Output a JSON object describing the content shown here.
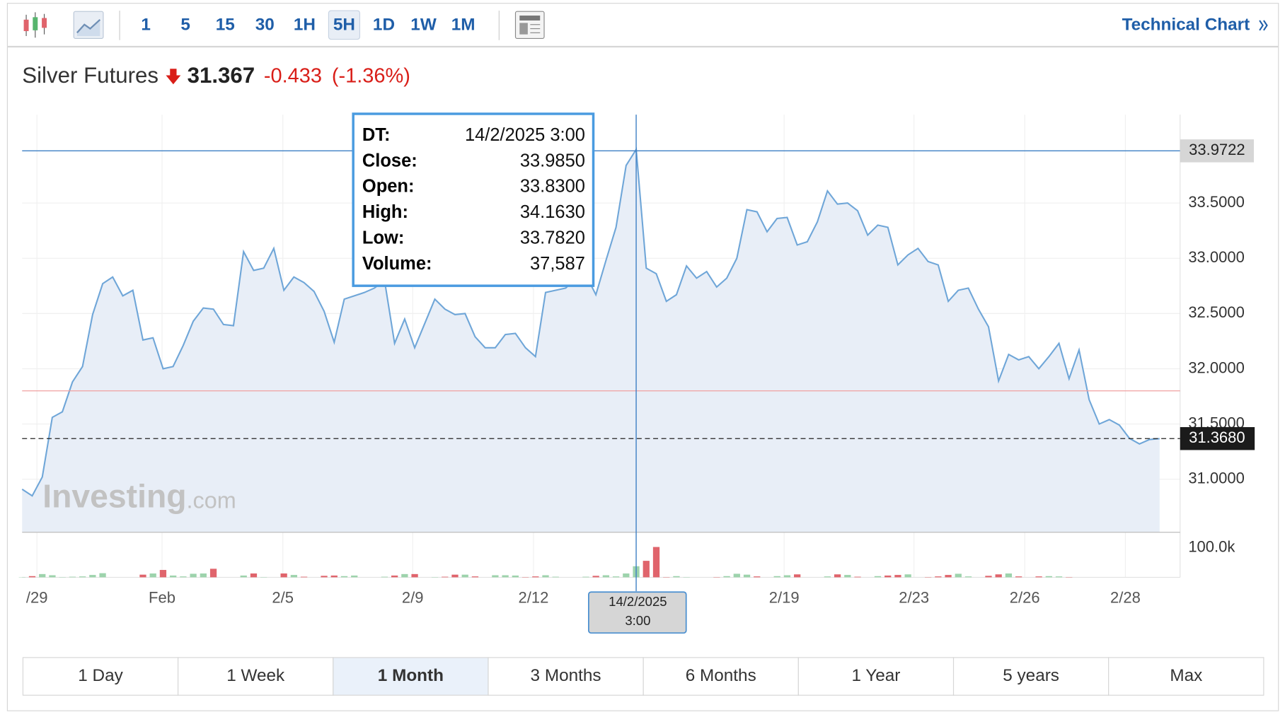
{
  "toolbar": {
    "intervals": [
      "1",
      "5",
      "15",
      "30",
      "1H",
      "5H",
      "1D",
      "1W",
      "1M"
    ],
    "active_interval": 5,
    "link": "Technical Chart"
  },
  "header": {
    "name": "Silver Futures",
    "price": "31.367",
    "change": "-0.433",
    "change_pct": "(-1.36%)"
  },
  "chart_data": {
    "type": "line",
    "color": "#6fa6d8",
    "fill": "#e8eef7",
    "values": [
      30.91,
      30.85,
      31.02,
      31.56,
      31.61,
      31.88,
      32.02,
      32.49,
      32.77,
      32.83,
      32.66,
      32.71,
      32.26,
      32.28,
      32.0,
      32.02,
      32.21,
      32.43,
      32.55,
      32.54,
      32.4,
      32.39,
      33.06,
      32.89,
      32.91,
      33.09,
      32.71,
      32.83,
      32.78,
      32.7,
      32.52,
      32.24,
      32.63,
      32.66,
      32.69,
      32.73,
      32.8,
      32.23,
      32.45,
      32.19,
      32.41,
      32.63,
      32.54,
      32.49,
      32.5,
      32.29,
      32.19,
      32.19,
      32.31,
      32.32,
      32.19,
      32.11,
      32.69,
      32.71,
      32.73,
      32.82,
      32.85,
      32.67,
      32.98,
      33.28,
      33.84,
      33.985,
      32.91,
      32.86,
      32.61,
      32.67,
      32.93,
      32.82,
      32.88,
      32.74,
      32.82,
      33.0,
      33.44,
      33.42,
      33.24,
      33.36,
      33.37,
      33.12,
      33.15,
      33.33,
      33.61,
      33.49,
      33.5,
      33.43,
      33.21,
      33.3,
      33.28,
      32.94,
      33.03,
      33.09,
      32.97,
      32.94,
      32.61,
      32.71,
      32.73,
      32.54,
      32.38,
      31.89,
      32.13,
      32.08,
      32.11,
      32.0,
      32.11,
      32.23,
      31.91,
      32.17,
      31.72,
      31.5,
      31.54,
      31.49,
      31.37,
      31.32,
      31.36,
      31.367
    ],
    "ylim": [
      30.52,
      34.3
    ],
    "yticks": [
      {
        "value": 31.0,
        "label": "31.0000"
      },
      {
        "value": 31.5,
        "label": "31.5000"
      },
      {
        "value": 32.0,
        "label": "32.0000"
      },
      {
        "value": 32.5,
        "label": "32.5000"
      },
      {
        "value": 33.0,
        "label": "33.0000"
      },
      {
        "value": 33.5,
        "label": "33.5000"
      }
    ],
    "xlim": [
      0,
      113
    ],
    "xticks": [
      {
        "value": 1.47,
        "label": "/29"
      },
      {
        "value": 13.9,
        "label": "Feb"
      },
      {
        "value": 25.9,
        "label": "2/5"
      },
      {
        "value": 38.8,
        "label": "2/9"
      },
      {
        "value": 50.8,
        "label": "2/12"
      },
      {
        "value": 75.7,
        "label": "2/19"
      },
      {
        "value": 88.6,
        "label": "2/23"
      },
      {
        "value": 99.6,
        "label": "2/26"
      },
      {
        "value": 109.6,
        "label": "2/28"
      }
    ],
    "grid": true,
    "reference_line": 31.8,
    "crosshair": {
      "index": 61,
      "price": {
        "value": 33.9722,
        "label": "33.9722"
      },
      "date": [
        "14/2/2025",
        "3:00"
      ]
    },
    "last_price": {
      "value": 31.368,
      "label": "31.3680"
    },
    "tooltip": [
      [
        "DT:",
        "14/2/2025 3:00"
      ],
      [
        "Close:",
        "33.9850"
      ],
      [
        "Open:",
        "33.8300"
      ],
      [
        "High:",
        "34.1630"
      ],
      [
        "Low:",
        "33.7820"
      ],
      [
        "Volume:",
        "37,587"
      ]
    ],
    "volume": {
      "up_color": "#9dd3ac",
      "down_color": "#e0646c",
      "ylim": [
        0,
        153000
      ],
      "yticks": [
        {
          "value": 100000,
          "label": "100.0k"
        }
      ],
      "values": [
        1000,
        4000,
        11000,
        7000,
        1000,
        2000,
        3000,
        8000,
        14000,
        0,
        0,
        0,
        9000,
        13000,
        25000,
        6000,
        3000,
        12000,
        13000,
        29000,
        0,
        0,
        6000,
        13000,
        1000,
        0,
        13000,
        8000,
        2000,
        0,
        5000,
        6000,
        4000,
        6000,
        0,
        0,
        2000,
        6000,
        11000,
        11000,
        0,
        1000,
        2000,
        9000,
        9000,
        3000,
        0,
        7000,
        7000,
        6000,
        1000,
        3000,
        7000,
        2000,
        0,
        0,
        2000,
        5000,
        7000,
        3000,
        13000,
        37587,
        56000,
        103000,
        1000,
        4000,
        1000,
        0,
        0,
        1000,
        4000,
        12000,
        9000,
        3000,
        0,
        4000,
        7000,
        10000,
        0,
        0,
        3000,
        10000,
        8000,
        2000,
        0,
        4000,
        6000,
        8000,
        10000,
        0,
        1000,
        3000,
        8000,
        12000,
        3000,
        0,
        5000,
        10000,
        13000,
        3000,
        0,
        3000,
        4000,
        3000,
        1000,
        0,
        0,
        0,
        0,
        0,
        0,
        0,
        0,
        0
      ]
    },
    "watermark": [
      "Investing",
      ".com"
    ]
  },
  "ranges": {
    "items": [
      "1 Day",
      "1 Week",
      "1 Month",
      "3 Months",
      "6 Months",
      "1 Year",
      "5 years",
      "Max"
    ],
    "active": 2
  }
}
